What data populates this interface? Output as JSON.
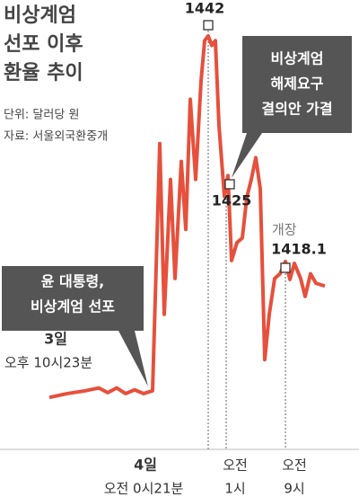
{
  "chart_data": {
    "type": "line",
    "title_lines": [
      "비상계엄",
      "선포 이후",
      "환율 추이"
    ],
    "unit": "단위: 달러당 원",
    "source": "자료: 서울외국환중개",
    "ylim": [
      1400,
      1445
    ],
    "series": [
      {
        "color": "#e6503c",
        "values": [
          1403.7,
          1404.1,
          1404.4,
          1404.7,
          1404.2,
          1404.7,
          1404.1,
          1404.5,
          1404.1,
          1404.4,
          1430.6,
          1412.5,
          1426.8,
          1416.3,
          1428.7,
          1421.5,
          1435.3,
          1426.8,
          1437.2,
          1441.5,
          1442,
          1441,
          1441.5,
          1432.5,
          1425,
          1427.2,
          1418.2,
          1420.1,
          1420.6,
          1424.9,
          1426.8,
          1429.1,
          1425.8,
          1407.7,
          1412.5,
          1416.3,
          1416.8,
          1418.1,
          1416.2,
          1417.9,
          1416.3,
          1414.4,
          1416.8,
          1415.8,
          1415.5
        ]
      }
    ],
    "callouts": [
      {
        "lines": [
          "비상계엄",
          "해제요구",
          "결의안 가결"
        ]
      },
      {
        "lines": [
          "윤 대통령,",
          "비상계엄 선포"
        ]
      }
    ],
    "time_labels": [
      {
        "day": "3일",
        "time": "오후 10시23분"
      },
      {
        "day": "4일",
        "time": "오전 0시21분"
      },
      {
        "lines": [
          "오전",
          "1시"
        ]
      },
      {
        "lines": [
          "오전",
          "9시"
        ]
      }
    ],
    "open_label": "개장"
  }
}
